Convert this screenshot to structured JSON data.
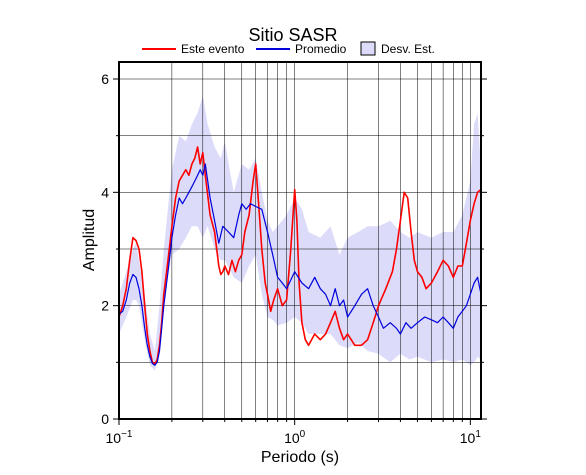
{
  "chart_data": {
    "type": "line",
    "title": "Sitio SASR",
    "xlabel": "Periodo (s)",
    "ylabel": "Amplitud",
    "xscale": "log",
    "xlim": [
      0.1,
      11.5
    ],
    "ylim": [
      0,
      6.3
    ],
    "xticks": [
      {
        "value": 0.1,
        "base": "10",
        "exp": "−1"
      },
      {
        "value": 1,
        "base": "10",
        "exp": "0"
      },
      {
        "value": 10,
        "base": "10",
        "exp": "1"
      }
    ],
    "yticks": [
      0,
      2,
      4,
      6
    ],
    "grid": true,
    "legend_position": "top",
    "colors": {
      "event": "#ff0000",
      "mean": "#0000dd",
      "band": "#dcdcfa",
      "band_stroke": "#000000"
    },
    "band": {
      "name": "Desv. Est.",
      "x": [
        0.1,
        0.11,
        0.12,
        0.125,
        0.13,
        0.14,
        0.15,
        0.16,
        0.17,
        0.18,
        0.2,
        0.22,
        0.24,
        0.26,
        0.28,
        0.3,
        0.32,
        0.35,
        0.38,
        0.4,
        0.45,
        0.5,
        0.55,
        0.6,
        0.65,
        0.7,
        0.75,
        0.8,
        0.9,
        1.0,
        1.1,
        1.2,
        1.4,
        1.6,
        1.8,
        2.0,
        2.3,
        2.6,
        3.0,
        3.5,
        4.0,
        4.5,
        5.0,
        6.0,
        7.0,
        8.0,
        9.0,
        10.0,
        10.5,
        11.0,
        11.5
      ],
      "upper": [
        2.2,
        2.6,
        3.0,
        3.1,
        2.8,
        2.2,
        1.5,
        1.2,
        2.0,
        3.0,
        4.4,
        5.0,
        4.9,
        5.2,
        5.4,
        5.7,
        5.2,
        4.8,
        4.6,
        4.9,
        4.0,
        4.5,
        4.4,
        4.6,
        4.0,
        3.5,
        3.3,
        3.4,
        3.6,
        3.9,
        3.7,
        3.3,
        3.2,
        3.4,
        2.9,
        3.2,
        3.3,
        3.4,
        3.4,
        3.5,
        3.3,
        3.2,
        3.3,
        3.2,
        3.3,
        3.3,
        3.6,
        4.2,
        5.2,
        5.4,
        4.4
      ],
      "lower": [
        1.5,
        1.8,
        2.1,
        2.1,
        2.0,
        1.4,
        0.95,
        0.85,
        1.3,
        2.1,
        2.9,
        3.0,
        3.2,
        3.4,
        3.4,
        3.2,
        3.4,
        3.0,
        2.8,
        2.8,
        2.5,
        2.4,
        2.7,
        2.9,
        2.2,
        1.8,
        1.75,
        1.65,
        1.7,
        1.8,
        1.7,
        1.5,
        1.5,
        1.5,
        1.3,
        1.25,
        1.35,
        1.2,
        1.15,
        1.0,
        1.15,
        1.05,
        1.1,
        1.0,
        1.05,
        1.0,
        1.05,
        0.95,
        1.0,
        1.1,
        1.05
      ]
    },
    "series": [
      {
        "name": "Este evento",
        "x": [
          0.1,
          0.105,
          0.11,
          0.115,
          0.12,
          0.125,
          0.13,
          0.135,
          0.14,
          0.145,
          0.15,
          0.155,
          0.16,
          0.165,
          0.17,
          0.175,
          0.18,
          0.19,
          0.2,
          0.21,
          0.22,
          0.23,
          0.24,
          0.25,
          0.26,
          0.27,
          0.28,
          0.29,
          0.3,
          0.31,
          0.33,
          0.35,
          0.37,
          0.38,
          0.39,
          0.4,
          0.42,
          0.44,
          0.46,
          0.48,
          0.5,
          0.52,
          0.55,
          0.58,
          0.6,
          0.62,
          0.65,
          0.68,
          0.7,
          0.73,
          0.76,
          0.8,
          0.85,
          0.9,
          0.95,
          1.0,
          1.03,
          1.06,
          1.1,
          1.15,
          1.2,
          1.3,
          1.4,
          1.5,
          1.6,
          1.7,
          1.8,
          1.9,
          2.0,
          2.2,
          2.4,
          2.6,
          2.8,
          3.0,
          3.3,
          3.6,
          3.8,
          4.0,
          4.2,
          4.4,
          4.6,
          4.8,
          5.0,
          5.3,
          5.6,
          6.0,
          6.5,
          7.0,
          7.5,
          8.0,
          8.5,
          9.0,
          9.5,
          10.0,
          10.5,
          11.0,
          11.5
        ],
        "values": [
          1.8,
          2.0,
          2.3,
          2.8,
          3.2,
          3.15,
          3.0,
          2.6,
          2.0,
          1.5,
          1.2,
          1.0,
          0.97,
          1.05,
          1.3,
          1.7,
          2.2,
          2.8,
          3.4,
          3.9,
          4.2,
          4.3,
          4.4,
          4.3,
          4.5,
          4.6,
          4.8,
          4.5,
          4.7,
          4.3,
          3.6,
          3.3,
          2.7,
          2.55,
          2.6,
          2.7,
          2.55,
          2.8,
          2.6,
          2.8,
          2.9,
          3.3,
          3.6,
          4.2,
          4.5,
          3.9,
          3.0,
          2.4,
          2.2,
          1.9,
          2.1,
          2.3,
          2.0,
          2.1,
          3.0,
          4.05,
          3.5,
          2.4,
          1.7,
          1.4,
          1.3,
          1.5,
          1.4,
          1.5,
          1.7,
          1.9,
          1.6,
          1.4,
          1.5,
          1.3,
          1.3,
          1.4,
          1.7,
          2.0,
          2.3,
          2.6,
          3.0,
          3.5,
          4.0,
          3.9,
          3.3,
          2.8,
          2.6,
          2.5,
          2.3,
          2.4,
          2.6,
          2.8,
          2.7,
          2.5,
          2.7,
          2.7,
          3.1,
          3.5,
          3.8,
          4.0,
          4.05
        ]
      },
      {
        "name": "Promedio",
        "x": [
          0.1,
          0.105,
          0.11,
          0.115,
          0.12,
          0.125,
          0.13,
          0.135,
          0.14,
          0.145,
          0.15,
          0.155,
          0.16,
          0.165,
          0.17,
          0.175,
          0.18,
          0.19,
          0.2,
          0.21,
          0.22,
          0.23,
          0.24,
          0.25,
          0.26,
          0.27,
          0.28,
          0.29,
          0.3,
          0.31,
          0.33,
          0.35,
          0.37,
          0.39,
          0.42,
          0.45,
          0.48,
          0.5,
          0.53,
          0.56,
          0.6,
          0.65,
          0.7,
          0.75,
          0.8,
          0.85,
          0.9,
          1.0,
          1.1,
          1.2,
          1.3,
          1.4,
          1.5,
          1.6,
          1.7,
          1.8,
          1.9,
          2.0,
          2.2,
          2.4,
          2.6,
          2.8,
          3.0,
          3.2,
          3.5,
          3.8,
          4.0,
          4.3,
          4.6,
          5.0,
          5.5,
          6.0,
          6.5,
          7.0,
          7.5,
          8.0,
          8.5,
          9.0,
          9.5,
          10.0,
          10.5,
          11.0,
          11.5
        ],
        "values": [
          1.85,
          1.9,
          2.1,
          2.4,
          2.55,
          2.5,
          2.3,
          2.0,
          1.6,
          1.3,
          1.1,
          0.98,
          0.95,
          1.0,
          1.2,
          1.6,
          2.0,
          2.6,
          3.2,
          3.6,
          3.9,
          3.8,
          3.9,
          4.0,
          4.1,
          4.2,
          4.3,
          4.4,
          4.3,
          4.5,
          3.9,
          3.5,
          3.1,
          3.4,
          3.3,
          3.2,
          3.6,
          3.8,
          3.7,
          3.8,
          3.75,
          3.7,
          3.3,
          2.9,
          2.5,
          2.4,
          2.3,
          2.6,
          2.4,
          2.3,
          2.5,
          2.3,
          2.2,
          2.0,
          2.3,
          2.0,
          2.1,
          1.8,
          2.0,
          2.2,
          2.3,
          2.0,
          1.8,
          1.6,
          1.7,
          1.6,
          1.5,
          1.7,
          1.6,
          1.7,
          1.8,
          1.75,
          1.7,
          1.8,
          1.7,
          1.6,
          1.8,
          1.9,
          2.0,
          2.2,
          2.4,
          2.5,
          2.2
        ]
      }
    ]
  }
}
